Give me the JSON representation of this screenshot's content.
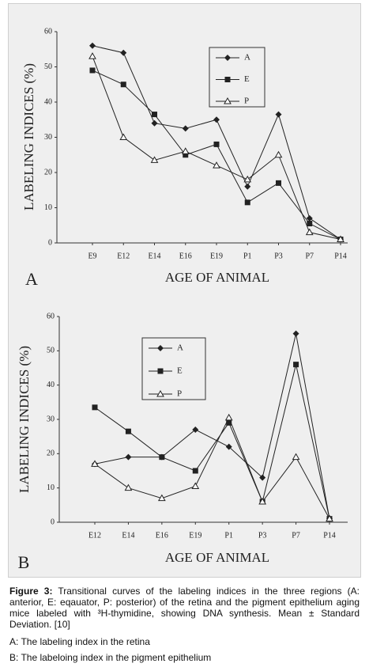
{
  "chart_data": [
    {
      "type": "line",
      "panel": "A",
      "ylabel": "LABELING INDICES (%)",
      "xlabel": "AGE OF ANIMAL",
      "categories": [
        "E9",
        "E12",
        "E14",
        "E16",
        "E19",
        "P1",
        "P3",
        "P7",
        "P14"
      ],
      "ylim": [
        0,
        60
      ],
      "yticks": [
        0,
        10,
        20,
        30,
        40,
        50,
        60
      ],
      "series": [
        {
          "name": "A",
          "color": "#222222",
          "marker": "diamond",
          "values": [
            56,
            54,
            34,
            32.5,
            35,
            16,
            36.5,
            7,
            1
          ]
        },
        {
          "name": "E",
          "color": "#222222",
          "marker": "square",
          "values": [
            49,
            45,
            36.5,
            25,
            28,
            11.5,
            17,
            5.5,
            1
          ]
        },
        {
          "name": "P",
          "color": "#222222",
          "marker": "triangle",
          "values": [
            53,
            30,
            23.5,
            26,
            22,
            18,
            25,
            3,
            1
          ]
        }
      ]
    },
    {
      "type": "line",
      "panel": "B",
      "ylabel": "LABELING INDICES (%)",
      "xlabel": "AGE OF ANIMAL",
      "categories": [
        "E12",
        "E14",
        "E16",
        "E19",
        "P1",
        "P3",
        "P7",
        "P14"
      ],
      "ylim": [
        0,
        60
      ],
      "yticks": [
        0,
        10,
        20,
        30,
        40,
        50,
        60
      ],
      "series": [
        {
          "name": "A",
          "color": "#222222",
          "marker": "diamond",
          "values": [
            17,
            19,
            19,
            27,
            22,
            13,
            55,
            1
          ]
        },
        {
          "name": "E",
          "color": "#222222",
          "marker": "square",
          "values": [
            33.5,
            26.5,
            19,
            15,
            29,
            6,
            46,
            1
          ]
        },
        {
          "name": "P",
          "color": "#222222",
          "marker": "triangle",
          "values": [
            17,
            10,
            7,
            10.5,
            30.5,
            6,
            19,
            1
          ]
        }
      ]
    }
  ],
  "caption": {
    "label": "Figure 3:",
    "text": "Transitional curves of the labeling indices in the three regions (A: anterior, E: eqauator, P: posterior) of the retina and the pigment epithelium aging mice labeled with ³H-thymidine, showing DNA synthesis. Mean ± Standard Deviation. [10]",
    "notes": [
      "A: The labeling index in the retina",
      "B: The labeloing index in the pigment epithelium"
    ]
  }
}
